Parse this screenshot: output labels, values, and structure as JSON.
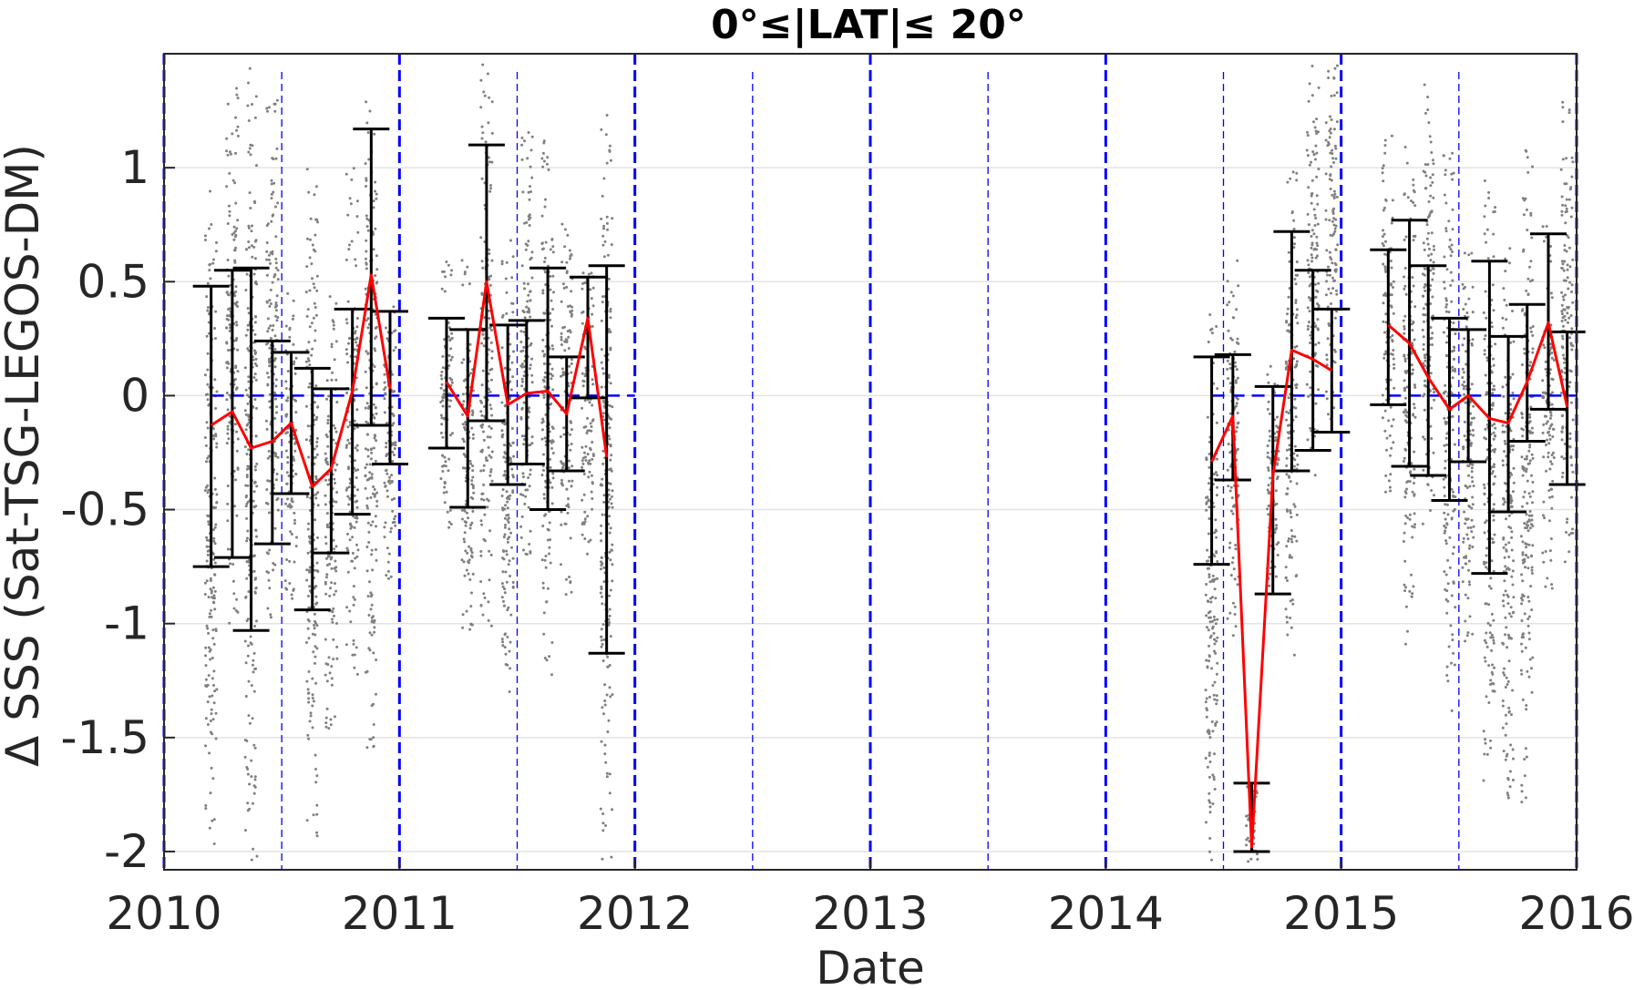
{
  "chart_data": {
    "type": "scatter",
    "title": "0°≤|LAT|≤ 20°",
    "xlabel": "Date",
    "ylabel": "Δ SSS (Sat-TSG-LEGOS-DM)",
    "xlim": [
      2010,
      2016
    ],
    "ylim": [
      -2.08,
      1.5
    ],
    "x_ticks": [
      2010,
      2011,
      2012,
      2013,
      2014,
      2015,
      2016
    ],
    "x_tick_labels": [
      "2010",
      "2011",
      "2012",
      "2013",
      "2014",
      "2015",
      "2016"
    ],
    "y_ticks": [
      1,
      0.5,
      0,
      -0.5,
      -1,
      -1.5,
      -2
    ],
    "y_tick_labels": [
      "1",
      "0.5",
      "0",
      "-0.5",
      "-1",
      "-1.5",
      "-2"
    ],
    "grid": "horizontal",
    "colors": {
      "scatter": "#808080",
      "mean_line": "#ff0000",
      "error_bars": "#000000",
      "year_lines": "#0000ff",
      "zero_line": "#0000ff",
      "grid": "#e3e3e3"
    },
    "year_boundaries": [
      2010,
      2011,
      2012,
      2013,
      2014,
      2015,
      2016
    ],
    "half_year_lines": [
      2010.5,
      2011.5,
      2012.5,
      2013.5,
      2014.5,
      2015.5
    ],
    "zero_line_segments": [
      [
        2010.2,
        2011.0
      ],
      [
        2011.2,
        2012.0
      ],
      [
        2014.45,
        2015.0
      ],
      [
        2015.2,
        2016.0
      ]
    ],
    "series": [
      {
        "kind": "monthly_mean",
        "x": [
          2010.2,
          2010.29,
          2010.37,
          2010.46,
          2010.54,
          2010.63,
          2010.71,
          2010.8,
          2010.88,
          2010.96,
          2011.2,
          2011.29,
          2011.37,
          2011.46,
          2011.54,
          2011.63,
          2011.71,
          2011.8,
          2011.88,
          2011.96,
          2014.45,
          2014.54,
          2014.62,
          2014.71,
          2014.79,
          2014.88,
          2014.96,
          2015.2,
          2015.29,
          2015.37,
          2015.46,
          2015.54,
          2015.63,
          2015.71,
          2015.79,
          2015.88,
          2015.96
        ],
        "mean": [
          -0.13,
          -0.07,
          -0.23,
          -0.2,
          -0.12,
          -0.4,
          -0.32,
          0.02,
          0.53,
          0.03,
          0.06,
          -0.09,
          0.5,
          -0.04,
          0.01,
          0.02,
          -0.08,
          0.34,
          -0.27,
          null,
          -0.29,
          -0.09,
          -1.98,
          -0.35,
          0.2,
          0.16,
          0.11,
          0.31,
          0.23,
          0.08,
          -0.06,
          0.0,
          -0.1,
          -0.12,
          0.06,
          0.32,
          -0.05
        ],
        "lower": [
          -0.75,
          -0.71,
          -1.03,
          -0.65,
          -0.43,
          -0.94,
          -0.69,
          -0.52,
          -0.13,
          -0.3,
          -0.23,
          -0.49,
          -0.11,
          -0.39,
          -0.3,
          -0.5,
          -0.33,
          -0.01,
          -1.13,
          null,
          -0.74,
          -0.37,
          -2.0,
          -0.87,
          -0.33,
          -0.24,
          -0.16,
          -0.04,
          -0.31,
          -0.35,
          -0.46,
          -0.29,
          -0.78,
          -0.51,
          -0.2,
          -0.06,
          -0.39
        ],
        "upper": [
          0.48,
          0.55,
          0.56,
          0.24,
          0.19,
          0.12,
          0.03,
          0.38,
          1.17,
          0.37,
          0.34,
          0.29,
          1.1,
          0.31,
          0.33,
          0.56,
          0.17,
          0.52,
          0.57,
          null,
          0.17,
          0.18,
          -1.7,
          0.04,
          0.72,
          0.55,
          0.38,
          0.64,
          0.77,
          0.57,
          0.34,
          0.29,
          0.59,
          0.26,
          0.4,
          0.71,
          0.28
        ]
      }
    ],
    "scatter_clusters": [
      {
        "x": 2010.2,
        "ymin": -2.0,
        "ymax": 0.9
      },
      {
        "x": 2010.29,
        "ymin": -1.0,
        "ymax": 1.35
      },
      {
        "x": 2010.37,
        "ymin": -2.05,
        "ymax": 1.45
      },
      {
        "x": 2010.46,
        "ymin": -1.05,
        "ymax": 1.3
      },
      {
        "x": 2010.54,
        "ymin": -0.9,
        "ymax": 0.45
      },
      {
        "x": 2010.63,
        "ymin": -1.95,
        "ymax": 1.0
      },
      {
        "x": 2010.71,
        "ymin": -1.5,
        "ymax": 0.5
      },
      {
        "x": 2010.8,
        "ymin": -1.25,
        "ymax": 1.0
      },
      {
        "x": 2010.88,
        "ymin": -1.55,
        "ymax": 1.35
      },
      {
        "x": 2010.96,
        "ymin": -0.85,
        "ymax": 0.55
      },
      {
        "x": 2011.2,
        "ymin": -0.65,
        "ymax": 0.6
      },
      {
        "x": 2011.29,
        "ymin": -1.2,
        "ymax": 0.6
      },
      {
        "x": 2011.37,
        "ymin": -1.05,
        "ymax": 1.48
      },
      {
        "x": 2011.46,
        "ymin": -1.5,
        "ymax": 0.75
      },
      {
        "x": 2011.54,
        "ymin": -0.8,
        "ymax": 1.2
      },
      {
        "x": 2011.63,
        "ymin": -1.3,
        "ymax": 1.2
      },
      {
        "x": 2011.71,
        "ymin": -0.9,
        "ymax": 0.8
      },
      {
        "x": 2011.8,
        "ymin": -0.85,
        "ymax": 0.7
      },
      {
        "x": 2011.88,
        "ymin": -2.05,
        "ymax": 1.25
      },
      {
        "x": 2014.45,
        "ymin": -2.05,
        "ymax": 0.4
      },
      {
        "x": 2014.54,
        "ymin": -1.1,
        "ymax": 0.6
      },
      {
        "x": 2014.62,
        "ymin": -2.05,
        "ymax": -1.7
      },
      {
        "x": 2014.71,
        "ymin": -0.85,
        "ymax": 0.2
      },
      {
        "x": 2014.79,
        "ymin": -1.2,
        "ymax": 1.0
      },
      {
        "x": 2014.88,
        "ymin": -0.35,
        "ymax": 1.45
      },
      {
        "x": 2014.96,
        "ymin": -0.15,
        "ymax": 1.45
      },
      {
        "x": 2015.2,
        "ymin": -0.45,
        "ymax": 1.15
      },
      {
        "x": 2015.29,
        "ymin": -1.1,
        "ymax": 1.15
      },
      {
        "x": 2015.37,
        "ymin": -0.6,
        "ymax": 1.4
      },
      {
        "x": 2015.46,
        "ymin": -1.4,
        "ymax": 1.1
      },
      {
        "x": 2015.54,
        "ymin": -1.25,
        "ymax": 0.65
      },
      {
        "x": 2015.63,
        "ymin": -1.75,
        "ymax": 0.95
      },
      {
        "x": 2015.71,
        "ymin": -1.8,
        "ymax": 0.75
      },
      {
        "x": 2015.79,
        "ymin": -1.8,
        "ymax": 1.1
      },
      {
        "x": 2015.88,
        "ymin": -0.85,
        "ymax": 0.75
      },
      {
        "x": 2015.96,
        "ymin": -0.75,
        "ymax": 1.3
      }
    ]
  }
}
